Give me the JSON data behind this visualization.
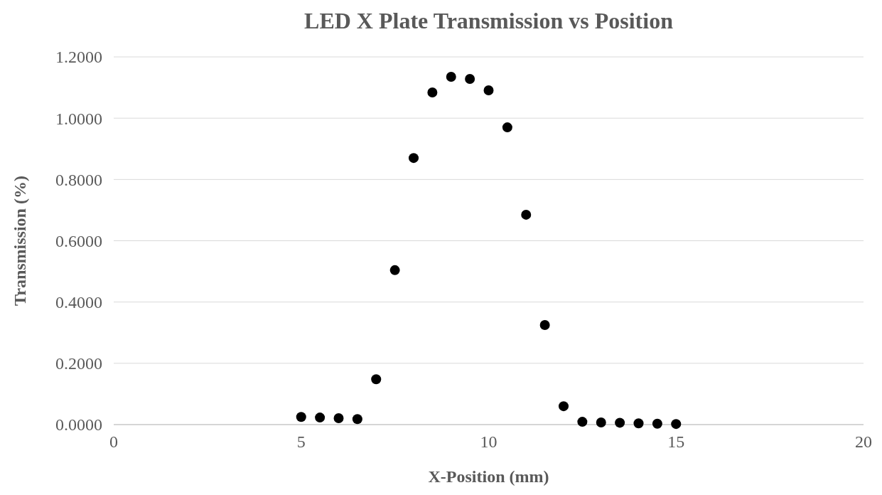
{
  "chart_data": {
    "type": "scatter",
    "title": "LED X Plate Transmission vs Position",
    "xlabel": "X-Position (mm)",
    "ylabel": "Transmission (%)",
    "x": [
      5,
      5.5,
      6,
      6.5,
      7,
      7.5,
      8,
      8.5,
      9,
      9.5,
      10,
      10.5,
      11,
      11.5,
      12,
      12.5,
      13,
      13.5,
      14,
      14.5,
      15
    ],
    "series": [
      {
        "color": "#000000",
        "values": [
          0.025,
          0.023,
          0.021,
          0.018,
          0.148,
          0.504,
          0.87,
          1.084,
          1.135,
          1.128,
          1.091,
          0.97,
          0.685,
          0.325,
          0.06,
          0.009,
          0.007,
          0.006,
          0.004,
          0.003,
          0.002
        ]
      }
    ],
    "xlim": [
      0,
      20
    ],
    "xticks": [
      0,
      5,
      10,
      15,
      20
    ],
    "ylim": [
      0,
      1.2
    ],
    "yticks": [
      {
        "value": 0,
        "label": "0.0000"
      },
      {
        "value": 0.2,
        "label": "0.2000"
      },
      {
        "value": 0.4,
        "label": "0.4000"
      },
      {
        "value": 0.6,
        "label": "0.6000"
      },
      {
        "value": 0.8,
        "label": "0.8000"
      },
      {
        "value": 1,
        "label": "1.0000"
      },
      {
        "value": 1.2,
        "label": "1.2000"
      }
    ],
    "grid": "y",
    "marker": "circle"
  }
}
